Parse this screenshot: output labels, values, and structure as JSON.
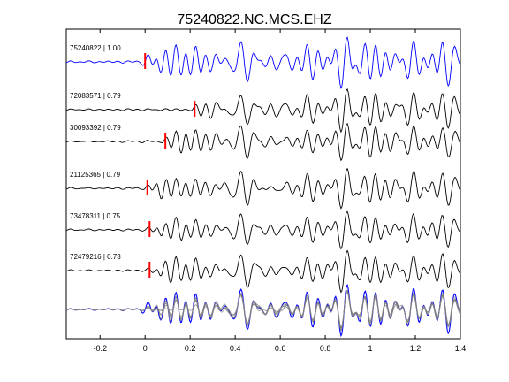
{
  "chart_data": {
    "type": "line",
    "title": "75240822.NC.MCS.EHZ",
    "xlabel": "",
    "ylabel": "",
    "xlim": [
      -0.35,
      1.4
    ],
    "xticks": [
      -0.2,
      0,
      0.2,
      0.4,
      0.6,
      0.8,
      1,
      1.2,
      1.4
    ],
    "xtick_labels": [
      "-0.2",
      "0",
      "0.2",
      "0.4",
      "0.6",
      "0.8",
      "1",
      "1.2",
      "1.4"
    ],
    "grid": false,
    "traces": [
      {
        "label": "75240822 | 1.00",
        "color": "#0000ff",
        "pick_time": 0.0
      },
      {
        "label": "72083571 | 0.79",
        "color": "#000000",
        "pick_time": 0.22
      },
      {
        "label": "30093392 | 0.79",
        "color": "#000000",
        "pick_time": 0.09
      },
      {
        "label": "21125365 | 0.79",
        "color": "#000000",
        "pick_time": 0.01
      },
      {
        "label": "73478311 | 0.75",
        "color": "#000000",
        "pick_time": 0.02
      },
      {
        "label": "72479216 | 0.73",
        "color": "#000000",
        "pick_time": 0.02
      }
    ],
    "overlay": {
      "reference_color": "#0000ff",
      "others_color": "#808080"
    },
    "pick_color": "#ff0000"
  }
}
